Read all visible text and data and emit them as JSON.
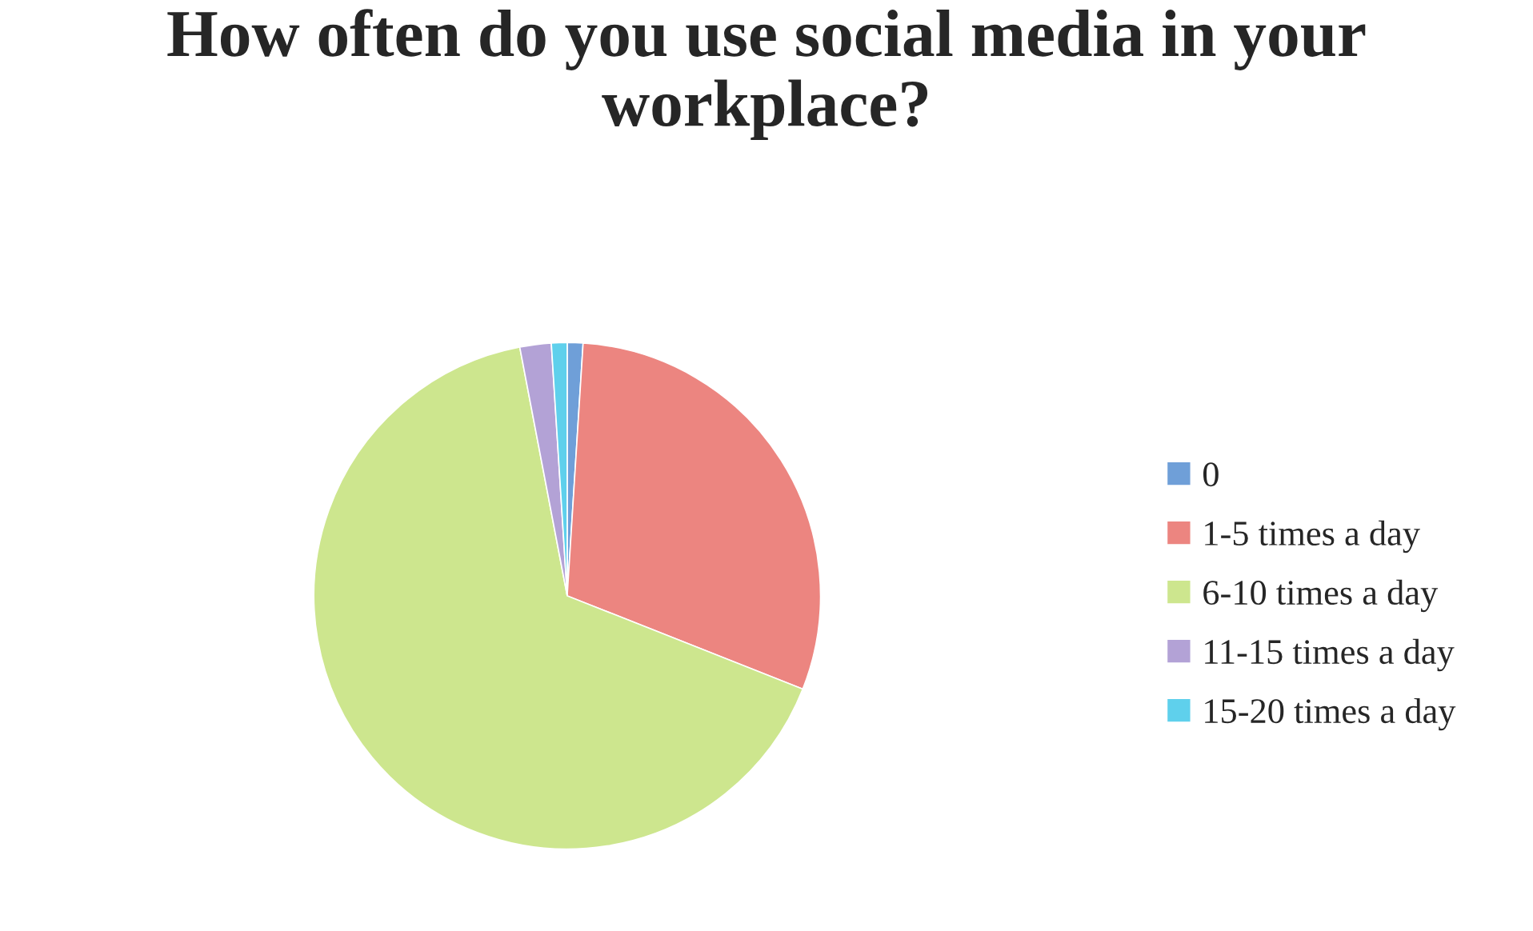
{
  "chart_data": {
    "type": "pie",
    "title": "How often do you use social media in your workplace?",
    "categories": [
      "0",
      "1-5 times a day",
      "6-10 times a day",
      "11-15 times a day",
      "15-20 times a day"
    ],
    "values": [
      1,
      30,
      66,
      2,
      1
    ],
    "colors": [
      "#6f9fd8",
      "#ec8580",
      "#cde68e",
      "#b3a2d6",
      "#5fd0ec"
    ],
    "legend": "right"
  }
}
